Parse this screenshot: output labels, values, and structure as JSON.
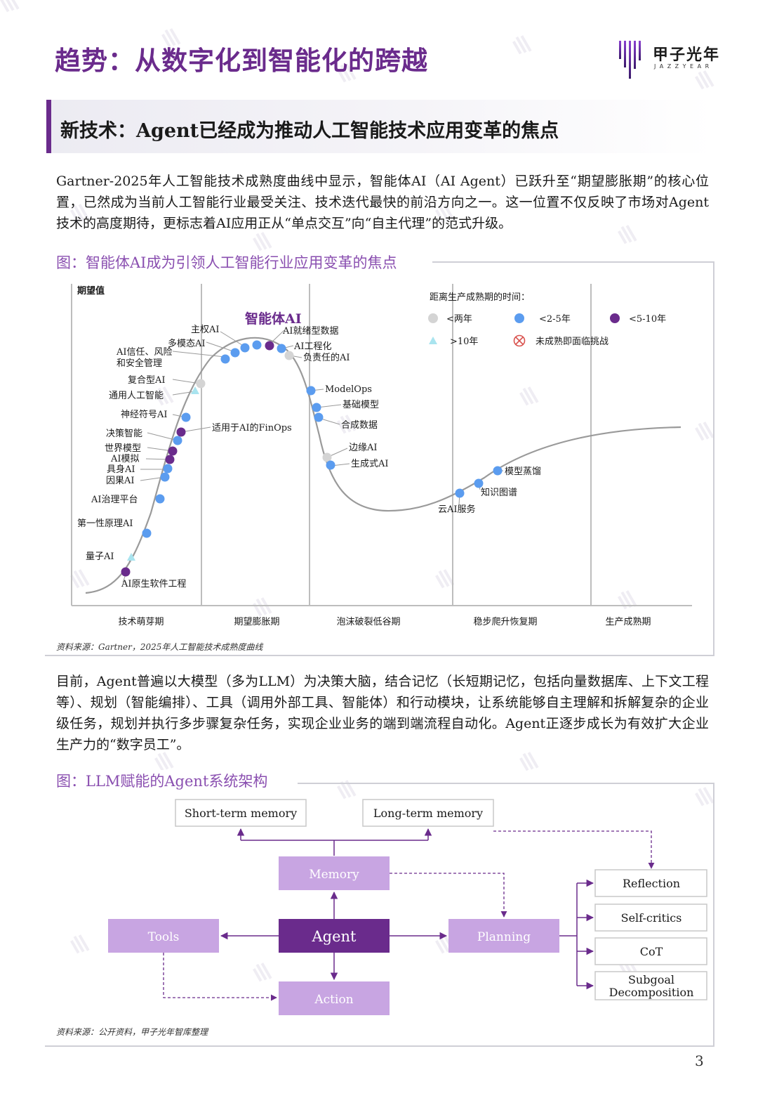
{
  "header": {
    "title": "趋势：从数字化到智能化的跨越",
    "logo_cn": "甲子光年",
    "logo_en": "JAZZYEAR"
  },
  "section": {
    "title": "新技术：Agent已经成为推动人工智能技术应用变革的焦点"
  },
  "paragraph1": "Gartner-2025年人工智能技术成熟度曲线中显示，智能体AI（AI Agent）已跃升至“期望膨胀期”的核心位置，已然成为当前人工智能行业最受关注、技术迭代最快的前沿方向之一。这一位置不仅反映了市场对Agent技术的高度期待，更标志着AI应用正从“单点交互”向“自主代理”的范式升级。",
  "figure1": {
    "title": "图：智能体AI成为引领人工智能行业应用变革的焦点",
    "source": "资料来源：Gartner，2025年人工智能技术成熟度曲线",
    "y_label": "期望值",
    "highlight": "智能体AI",
    "legend": {
      "title": "距离生产成熟期的时间：",
      "items": [
        {
          "label": "<两年",
          "color": "#d4d4d4",
          "shape": "circle"
        },
        {
          "label": "<2-5年",
          "color": "#5b9cef",
          "shape": "circle"
        },
        {
          "label": "<5-10年",
          "color": "#6a2b8c",
          "shape": "circle"
        },
        {
          "label": ">10年",
          "color": "#a9e4ef",
          "shape": "triangle"
        },
        {
          "label": "未成熟即面临挑战",
          "color": "#d9534f",
          "shape": "cross-circle"
        }
      ]
    },
    "phases": [
      "技术萌芽期",
      "期望膨胀期",
      "泡沫破裂低谷期",
      "稳步爬升恢复期",
      "生产成熟期"
    ],
    "labels": {
      "ai_native_software": "AI原生软件工程",
      "quantum_ai": "量子AI",
      "first_principles_ai": "第一性原理AI",
      "ai_governance": "AI治理平台",
      "causal_ai": "因果AI",
      "embodied_ai": "具身AI",
      "ai_simulation": "AI模拟",
      "world_model": "世界模型",
      "decision_intelligence": "决策智能",
      "neurosymbolic_ai": "神经符号AI",
      "agi": "通用人工智能",
      "composite_ai": "复合型AI",
      "ai_trust": "AI信任、风险",
      "ai_trust2": "和安全管理",
      "multimodal_ai": "多模态AI",
      "sovereign_ai": "主权AI",
      "ai_ready_data": "AI就绪型数据",
      "ai_engineering": "AI工程化",
      "responsible_ai": "负责任的AI",
      "finops": "适用于AI的FinOps",
      "modelops": "ModelOps",
      "foundation_models": "基础模型",
      "synthetic_data": "合成数据",
      "edge_ai": "边缘AI",
      "genai": "生成式AI",
      "cloud_ai": "云AI服务",
      "knowledge_graph": "知识图谱",
      "distillation": "模型蒸馏"
    }
  },
  "paragraph2": "目前，Agent普遍以大模型（多为LLM）为决策大脑，结合记忆（长短期记忆，包括向量数据库、上下文工程等）、规划（智能编排）、工具（调用外部工具、智能体）和行动模块，让系统能够自主理解和拆解复杂的企业级任务，规划并执行多步骤复杂任务，实现企业业务的端到端流程自动化。Agent正逐步成长为有效扩大企业生产力的“数字员工”。",
  "figure2": {
    "title": "图：LLM赋能的Agent系统架构",
    "source": "资料来源：公开资料，甲子光年智库整理",
    "nodes": {
      "short_term": "Short-term memory",
      "long_term": "Long-term memory",
      "memory": "Memory",
      "agent": "Agent",
      "tools": "Tools",
      "planning": "Planning",
      "action": "Action",
      "reflection": "Reflection",
      "self_critics": "Self-critics",
      "cot": "CoT",
      "subgoal1": "Subgoal",
      "subgoal2": "Decomposition"
    },
    "colors": {
      "agent": "#6a2b8c",
      "light": "#c8a5e2",
      "arrow": "#6a2b8c"
    }
  },
  "page_number": "3"
}
